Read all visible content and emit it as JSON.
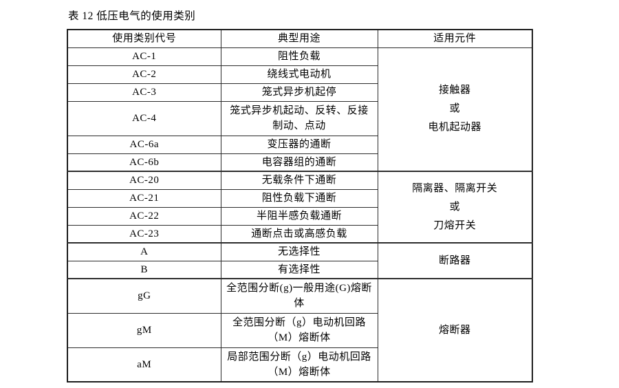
{
  "page": {
    "title": "表 12  低压电气的使用类别"
  },
  "colors": {
    "ink": "#000000",
    "border": "#2b2b2b",
    "background": "#ffffff"
  },
  "table": {
    "headers": [
      "使用类别代号",
      "典型用途",
      "适用元件"
    ],
    "rows": [
      {
        "code": "AC-1",
        "use": "阻性负载"
      },
      {
        "code": "AC-2",
        "use": "绕线式电动机"
      },
      {
        "code": "AC-3",
        "use": "笼式异步机起停"
      },
      {
        "code": "AC-4",
        "use": "笼式异步机起动、反转、反接制动、点动"
      },
      {
        "code": "AC-6a",
        "use": "变压器的通断"
      },
      {
        "code": "AC-6b",
        "use": "电容器组的通断"
      },
      {
        "code": "AC-20",
        "use": "无载条件下通断"
      },
      {
        "code": "AC-21",
        "use": "阻性负载下通断"
      },
      {
        "code": "AC-22",
        "use": "半阻半感负载通断"
      },
      {
        "code": "AC-23",
        "use": "通断点击或高感负载"
      },
      {
        "code": "A",
        "use": "无选择性"
      },
      {
        "code": "B",
        "use": "有选择性"
      },
      {
        "code": "gG",
        "use": "全范围分断(g)一般用途(G)熔断体"
      },
      {
        "code": "gM",
        "use": "全范围分断（g）电动机回路（M）熔断体"
      },
      {
        "code": "aM",
        "use": "局部范围分断（g）电动机回路（M）熔断体"
      }
    ],
    "components": [
      {
        "text": "接触器\n或\n电机起动器"
      },
      {
        "text": "隔离器、隔离开关\n或\n刀熔开关"
      },
      {
        "text": "断路器"
      },
      {
        "text": "熔断器"
      }
    ]
  }
}
